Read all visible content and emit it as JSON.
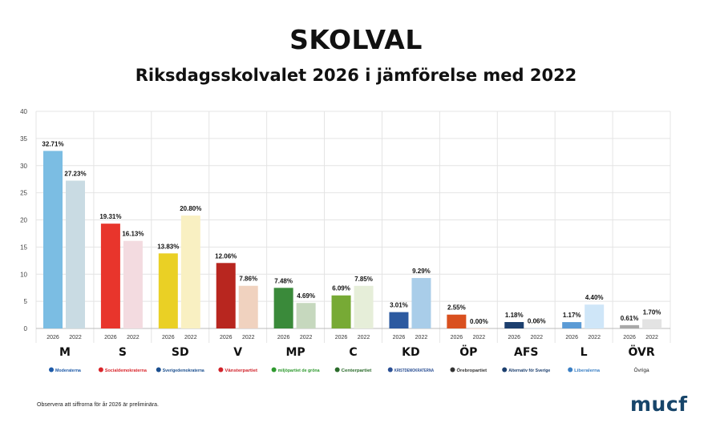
{
  "page": {
    "title": "SKOLVAL",
    "subtitle": "Riksdagsskolvalet 2026 i jämförelse med 2022",
    "footnote": "Observera att siffrorna för år 2026 är preliminära.",
    "brand": "mucf"
  },
  "chart_data": {
    "type": "bar",
    "title": "SKOLVAL",
    "subtitle": "Riksdagsskolvalet 2026 i jämförelse med 2022",
    "xlabel": "",
    "ylabel": "",
    "ylim": [
      0,
      40
    ],
    "yticks": [
      0,
      5,
      10,
      15,
      20,
      25,
      30,
      35,
      40
    ],
    "grid": true,
    "legend": "none",
    "series_labels": [
      "2026",
      "2022"
    ],
    "categories": [
      "M",
      "S",
      "SD",
      "V",
      "MP",
      "C",
      "KD",
      "ÖP",
      "AFS",
      "L",
      "ÖVR"
    ],
    "party_names": [
      "Moderaterna",
      "Socialdemokraterna",
      "Sverigedemokraterna",
      "Vänsterpartiet",
      "miljöpartiet de gröna",
      "Centerpartiet",
      "KRISTDEMOKRATERNA",
      "Örebropartiet",
      "Alternativ för Sverige",
      "Liberalerna",
      "Övriga"
    ],
    "series": [
      {
        "name": "2026",
        "values": [
          32.71,
          19.31,
          13.83,
          12.06,
          7.48,
          6.09,
          3.01,
          2.55,
          1.18,
          1.17,
          0.61
        ],
        "labels": [
          "32.71%",
          "19.31%",
          "13.83%",
          "12.06%",
          "7.48%",
          "6.09%",
          "3.01%",
          "2.55%",
          "1.18%",
          "1.17%",
          "0.61%"
        ]
      },
      {
        "name": "2022",
        "values": [
          27.23,
          16.13,
          20.8,
          7.86,
          4.69,
          7.85,
          9.29,
          0.0,
          0.06,
          4.4,
          1.7
        ],
        "labels": [
          "27.23%",
          "16.13%",
          "20.80%",
          "7.86%",
          "4.69%",
          "7.85%",
          "9.29%",
          "0.00%",
          "0.06%",
          "4.40%",
          "1.70%"
        ]
      }
    ],
    "colors_2026": [
      "#7bbde3",
      "#e8352c",
      "#ead025",
      "#b8261f",
      "#3a8a3a",
      "#77aa35",
      "#2c5aa0",
      "#d9501f",
      "#1c3f6e",
      "#5b9bd5",
      "#a8a8a8"
    ],
    "colors_2022": [
      "#c9dbe3",
      "#f3dbe0",
      "#f9f0c2",
      "#f0d2bf",
      "#c6d8be",
      "#e6eed9",
      "#a9cde9",
      "#f5d8cc",
      "#b9c4d2",
      "#cfe6f8",
      "#e3e3e3"
    ],
    "logo_colors": [
      "#1d5aa8",
      "#d9252b",
      "#1b4f8f",
      "#d1222a",
      "#2f9a2f",
      "#2a6b2a",
      "#2a4f94",
      "#333333",
      "#1c3f6e",
      "#3a7fc4",
      "#222222"
    ]
  }
}
